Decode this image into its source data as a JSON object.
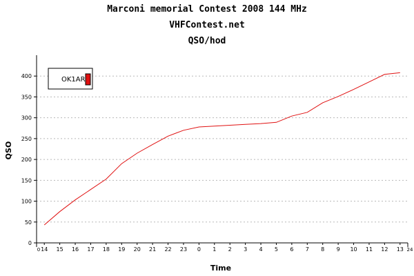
{
  "header": {
    "title": "Marconi memorial Contest 2008 144 MHz",
    "subtitle": "VHFContest.net",
    "unit": "QSO/hod"
  },
  "chart_data": {
    "type": "line",
    "title": "Marconi memorial Contest 2008 144 MHz",
    "subtitle": "VHFContest.net",
    "xlabel": "Time",
    "ylabel": "QSO",
    "x_ticks": [
      {
        "label": "0",
        "hours": 0
      },
      {
        "label": "14",
        "hours": 0.5
      },
      {
        "label": "15",
        "hours": 1.5
      },
      {
        "label": "16",
        "hours": 2.5
      },
      {
        "label": "17",
        "hours": 3.5
      },
      {
        "label": "18",
        "hours": 4.5
      },
      {
        "label": "19",
        "hours": 5.5
      },
      {
        "label": "20",
        "hours": 6.5
      },
      {
        "label": "21",
        "hours": 7.5
      },
      {
        "label": "22",
        "hours": 8.5
      },
      {
        "label": "23",
        "hours": 9.5
      },
      {
        "label": "0",
        "hours": 10.5
      },
      {
        "label": "1",
        "hours": 11.5
      },
      {
        "label": "2",
        "hours": 12.5
      },
      {
        "label": "3",
        "hours": 13.5
      },
      {
        "label": "4",
        "hours": 14.5
      },
      {
        "label": "5",
        "hours": 15.5
      },
      {
        "label": "6",
        "hours": 16.5
      },
      {
        "label": "7",
        "hours": 17.5
      },
      {
        "label": "8",
        "hours": 18.5
      },
      {
        "label": "9",
        "hours": 19.5
      },
      {
        "label": "10",
        "hours": 20.5
      },
      {
        "label": "11",
        "hours": 21.5
      },
      {
        "label": "12",
        "hours": 22.5
      },
      {
        "label": "13",
        "hours": 23.5
      },
      {
        "label": "24",
        "hours": 24
      }
    ],
    "xlim": [
      0,
      24
    ],
    "ylim": [
      0,
      450
    ],
    "y_ticks": [
      0,
      50,
      100,
      150,
      200,
      250,
      300,
      350,
      400
    ],
    "grid": true,
    "legend": {
      "position": "top-left"
    },
    "series": [
      {
        "name": "OK1AR",
        "color": "#e01010",
        "points": [
          [
            0.5,
            43
          ],
          [
            1.5,
            75
          ],
          [
            2.5,
            103
          ],
          [
            3.5,
            128
          ],
          [
            4.5,
            153
          ],
          [
            5.5,
            190
          ],
          [
            6.5,
            215
          ],
          [
            7.5,
            236
          ],
          [
            8.5,
            256
          ],
          [
            9.5,
            270
          ],
          [
            10.5,
            278
          ],
          [
            11.5,
            280
          ],
          [
            12.5,
            282
          ],
          [
            13.5,
            284
          ],
          [
            14.5,
            286
          ],
          [
            15.5,
            289
          ],
          [
            16.5,
            304
          ],
          [
            17.5,
            313
          ],
          [
            18.5,
            336
          ],
          [
            19.5,
            351
          ],
          [
            20.5,
            368
          ],
          [
            21.5,
            386
          ],
          [
            22.5,
            404
          ],
          [
            23.5,
            408
          ]
        ]
      }
    ]
  }
}
